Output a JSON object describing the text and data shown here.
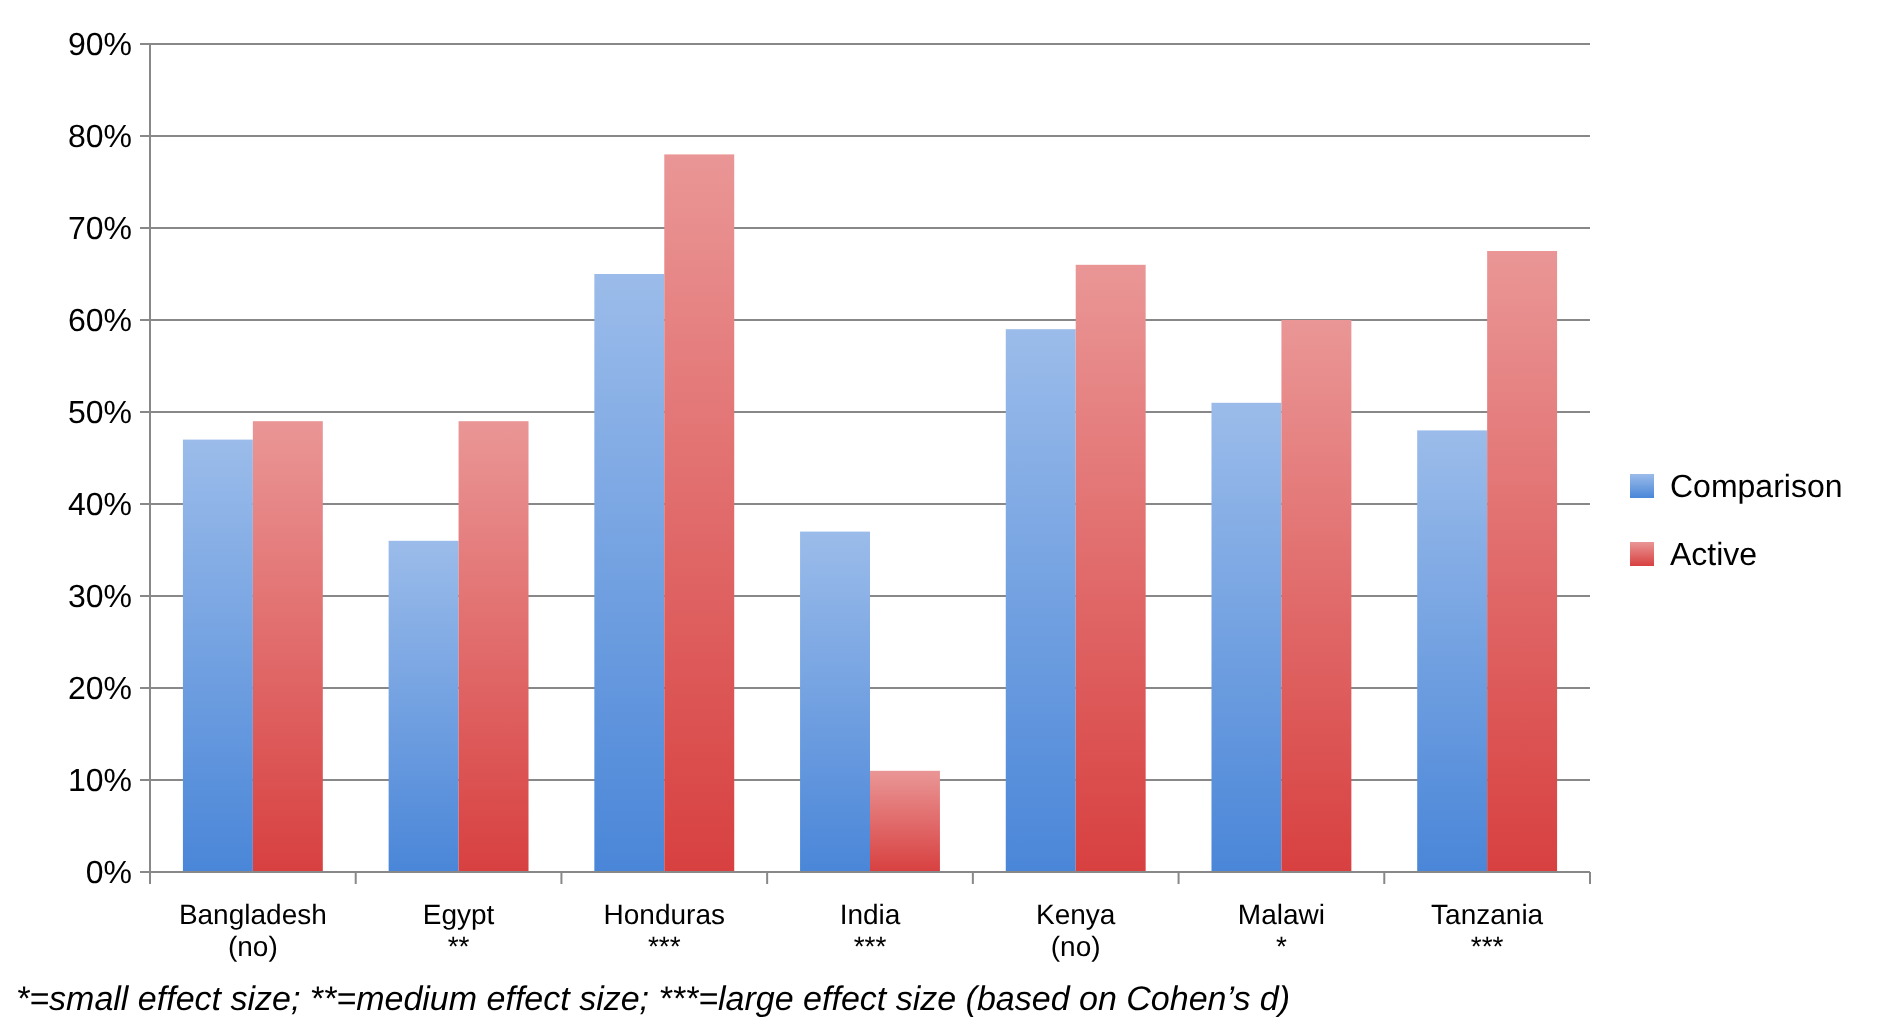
{
  "chart_data": {
    "type": "bar",
    "categories": [
      "Bangladesh\n(no)",
      "Egypt\n**",
      "Honduras\n***",
      "India\n***",
      "Kenya\n(no)",
      "Malawi\n*",
      "Tanzania\n***"
    ],
    "series": [
      {
        "name": "Comparison",
        "color": "#4a86d8",
        "values": [
          47,
          36,
          65,
          37,
          59,
          51,
          48
        ]
      },
      {
        "name": "Active",
        "color": "#d84040",
        "values": [
          49,
          49,
          78,
          11,
          66,
          60,
          67.5
        ]
      }
    ],
    "ylim": [
      0,
      90
    ],
    "yticks": [
      {
        "value": 0,
        "label": "0%"
      },
      {
        "value": 10,
        "label": "10%"
      },
      {
        "value": 20,
        "label": "20%"
      },
      {
        "value": 30,
        "label": "30%"
      },
      {
        "value": 40,
        "label": "40%"
      },
      {
        "value": 50,
        "label": "50%"
      },
      {
        "value": 60,
        "label": "60%"
      },
      {
        "value": 70,
        "label": "70%"
      },
      {
        "value": 80,
        "label": "80%"
      },
      {
        "value": 90,
        "label": "90%"
      }
    ],
    "grid": "y",
    "legend": "right",
    "annotations": [
      "*=small effect size; **=medium effect size; ***=large effect size (based on Cohen’s d)"
    ]
  }
}
